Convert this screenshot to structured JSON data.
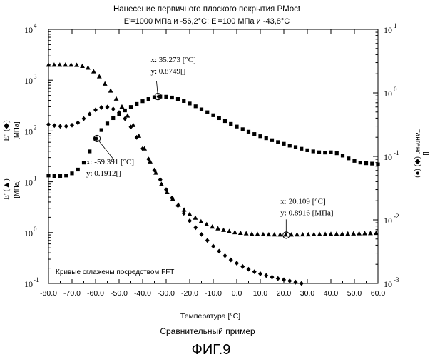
{
  "chart_data": {
    "type": "scatter",
    "title": "Нанесение первичного плоского покрытия PMoct",
    "subtitle": "E'=1000 МПа и -56,2°С; E'=100 МПа и -43,8°С",
    "xlabel_main": "Температура",
    "xlabel_unit": "[°C]",
    "caption": "Сравнительный пример",
    "figure_label": "ФИГ.9",
    "note": "Кривые сглажены посредством FFT",
    "left_axis_labels": [
      {
        "main": "E'' (◆)",
        "unit": "[МПа]"
      },
      {
        "main": "E' (▲)",
        "unit": "[МПа]"
      }
    ],
    "right_axis_label": {
      "main": "тангенс (◆) (●)",
      "unit": "[]"
    },
    "xlim": [
      -80,
      60
    ],
    "x_ticks": [
      "-80.0",
      "-70.0",
      "-60.0",
      "-50.0",
      "-40.0",
      "-30.0",
      "-20.0",
      "-10.0",
      "0.0",
      "10.0",
      "20.0",
      "30.0",
      "40.0",
      "50.0",
      "60.0"
    ],
    "y_left_log_range": [
      0.1,
      10000
    ],
    "y_left_ticks": [
      {
        "base": "10",
        "exp": "-1"
      },
      {
        "base": "10",
        "exp": "0"
      },
      {
        "base": "10",
        "exp": "1"
      },
      {
        "base": "10",
        "exp": "2"
      },
      {
        "base": "10",
        "exp": "3"
      },
      {
        "base": "10",
        "exp": "4"
      }
    ],
    "y_right_log_range": [
      0.001,
      10
    ],
    "y_right_ticks": [
      {
        "base": "10",
        "exp": "-3"
      },
      {
        "base": "10",
        "exp": "-2"
      },
      {
        "base": "10",
        "exp": "-1"
      },
      {
        "base": "10",
        "exp": "0"
      },
      {
        "base": "10",
        "exp": "1"
      }
    ],
    "series": [
      {
        "marker": "triangle",
        "axis": "left",
        "x": [
          -80,
          -77.6,
          -75.2,
          -72.8,
          -70.4,
          -68,
          -65.6,
          -63.2,
          -60.8,
          -58.4,
          -56,
          -53.6,
          -51.2,
          -48.8,
          -46.4,
          -44,
          -41.6,
          -39.2,
          -36.8,
          -34.4,
          -32,
          -29.6,
          -27.2,
          -24.8,
          -22.4,
          -20,
          -17.6,
          -15.2,
          -12.8,
          -10.4,
          -8,
          -5.6,
          -3.2,
          -0.8,
          1.6,
          4,
          6.4,
          8.8,
          11.2,
          13.6,
          16,
          18.4,
          20.8,
          23.2,
          25.6,
          28,
          30.4,
          32.8,
          35.2,
          37.6,
          40,
          42.4,
          44.8,
          47.2,
          49.6,
          52,
          54.4,
          56.8,
          59.2
        ],
        "y": [
          2000,
          2000,
          2000,
          2000,
          2000,
          1980,
          1900,
          1750,
          1480,
          1180,
          850,
          620,
          430,
          300,
          200,
          130,
          80,
          45,
          25,
          15,
          9,
          6.2,
          4.6,
          3.5,
          2.8,
          2.3,
          1.95,
          1.65,
          1.45,
          1.3,
          1.2,
          1.12,
          1.06,
          1.01,
          0.98,
          0.96,
          0.94,
          0.93,
          0.92,
          0.915,
          0.912,
          0.91,
          0.91,
          0.91,
          0.912,
          0.914,
          0.916,
          0.92,
          0.925,
          0.93,
          0.935,
          0.94,
          0.945,
          0.95,
          0.955,
          0.96,
          0.965,
          0.97,
          0.975
        ]
      },
      {
        "marker": "diamond",
        "axis": "left",
        "x": [
          -80,
          -77.5,
          -75,
          -72.5,
          -70,
          -67.5,
          -65,
          -62.5,
          -60,
          -57.5,
          -55,
          -52.5,
          -50,
          -47.5,
          -45,
          -42.5,
          -40,
          -37.5,
          -35,
          -32.5,
          -30,
          -27.5,
          -25,
          -22.5,
          -20,
          -17.5,
          -15,
          -12.5,
          -10,
          -7.5,
          -5,
          -2.5,
          0,
          2.5,
          5,
          7.5,
          10,
          12.5,
          15,
          17.5,
          20,
          22.5,
          25,
          27.5
        ],
        "y": [
          135,
          128,
          124,
          124,
          130,
          145,
          175,
          215,
          260,
          290,
          295,
          270,
          230,
          175,
          120,
          75,
          45,
          28,
          17,
          11,
          7,
          4.8,
          3.4,
          2.4,
          1.7,
          1.25,
          0.92,
          0.7,
          0.54,
          0.43,
          0.35,
          0.29,
          0.25,
          0.215,
          0.19,
          0.17,
          0.155,
          0.143,
          0.133,
          0.125,
          0.118,
          0.112,
          0.106,
          0.1
        ]
      },
      {
        "marker": "square",
        "axis": "right",
        "x": [
          -80,
          -77.5,
          -75,
          -72.5,
          -70,
          -67.5,
          -65,
          -62.5,
          -60,
          -57.5,
          -55,
          -52.5,
          -50,
          -47.5,
          -45,
          -42.5,
          -40,
          -37.5,
          -35,
          -32.5,
          -30,
          -27.5,
          -25,
          -22.5,
          -20,
          -17.5,
          -15,
          -12.5,
          -10,
          -7.5,
          -5,
          -2.5,
          0,
          2.5,
          5,
          7.5,
          10,
          12.5,
          15,
          17.5,
          20,
          22.5,
          25,
          27.5,
          30,
          32.5,
          35,
          37.5,
          40,
          42.5,
          45,
          47.5,
          50,
          52.5,
          55,
          57.5,
          60
        ],
        "y": [
          0.05,
          0.049,
          0.049,
          0.05,
          0.054,
          0.062,
          0.08,
          0.12,
          0.19,
          0.26,
          0.33,
          0.4,
          0.46,
          0.53,
          0.6,
          0.67,
          0.74,
          0.8,
          0.855,
          0.875,
          0.87,
          0.845,
          0.8,
          0.745,
          0.68,
          0.615,
          0.55,
          0.495,
          0.445,
          0.4,
          0.36,
          0.325,
          0.295,
          0.268,
          0.245,
          0.225,
          0.208,
          0.193,
          0.18,
          0.168,
          0.158,
          0.148,
          0.14,
          0.132,
          0.125,
          0.12,
          0.116,
          0.115,
          0.116,
          0.112,
          0.103,
          0.093,
          0.085,
          0.08,
          0.078,
          0.077,
          0.075
        ]
      }
    ],
    "annotations": [
      {
        "x": -33.5,
        "y": 0.875,
        "axis": "right",
        "lines": [
          "x: 35.273 [°C]",
          "y: 0.8749[]"
        ]
      },
      {
        "x": -59.391,
        "y": 0.1912,
        "axis": "right",
        "lines": [
          "x: -59.391 [°C]",
          "y: 0.1912[]"
        ]
      },
      {
        "x": 21.0,
        "y": 0.8916,
        "axis": "left",
        "lines": [
          "x: 20.109 [°C]",
          "y: 0.8916 [МПа]"
        ]
      }
    ]
  }
}
